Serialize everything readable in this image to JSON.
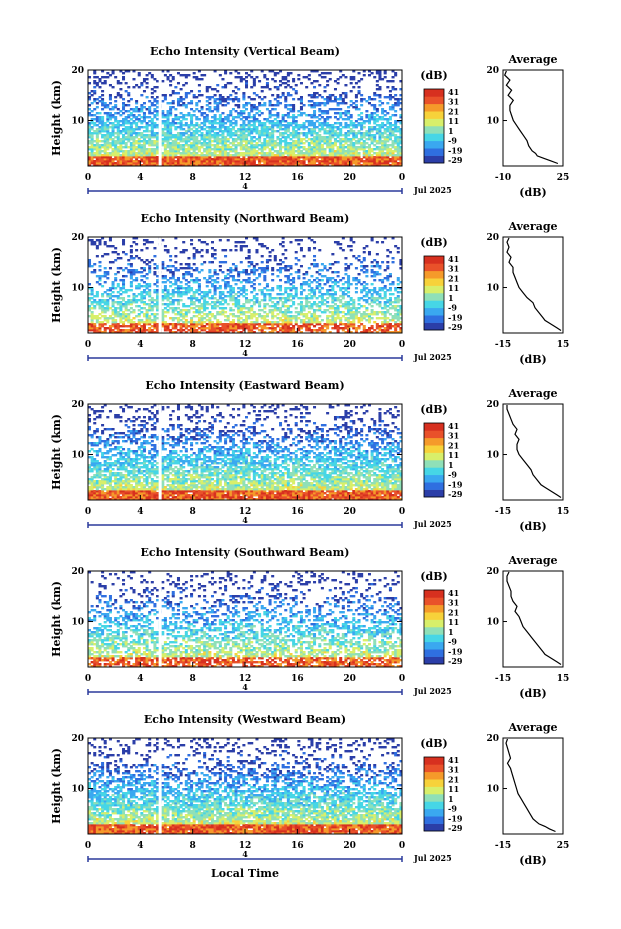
{
  "chart_data": [
    {
      "type": "heatmap",
      "title": "Echo Intensity (Vertical Beam)",
      "ylabel": "Height (km)",
      "x_ticks": [
        "0",
        "4",
        "8",
        "12",
        "16",
        "20",
        "0"
      ],
      "y_ticks": [
        "10",
        "20"
      ],
      "xlim": [
        0,
        24
      ],
      "ylim": [
        1,
        20
      ],
      "date_label": "Jul 2025",
      "day_marker": "4",
      "colorbar": {
        "unit": "(dB)",
        "ticks": [
          "41",
          "31",
          "21",
          "11",
          "1",
          "-9",
          "-19",
          "-29"
        ]
      },
      "profile": {
        "title": "Average",
        "xlabel": "(dB)",
        "x_ticks": [
          "-10",
          "25"
        ],
        "y_ticks": [
          "10",
          "20"
        ],
        "xlim": [
          -10,
          25
        ],
        "heights": [
          1.5,
          2.0,
          2.5,
          3.0,
          3.5,
          4.0,
          5.0,
          6.0,
          7.0,
          8.0,
          9.0,
          10.0,
          11.0,
          12.0,
          13.0,
          14.0,
          15.0,
          16.0,
          17.0,
          18.0,
          19.0,
          19.8
        ],
        "values": [
          22,
          18,
          14,
          10,
          9,
          7,
          5,
          4,
          2,
          0,
          -2,
          -4,
          -5,
          -6,
          -6,
          -4,
          -7,
          -5,
          -8,
          -6,
          -9,
          -8
        ]
      }
    },
    {
      "type": "heatmap",
      "title": "Echo Intensity (Northward Beam)",
      "ylabel": "Height (km)",
      "x_ticks": [
        "0",
        "4",
        "8",
        "12",
        "16",
        "20",
        "0"
      ],
      "y_ticks": [
        "10",
        "20"
      ],
      "xlim": [
        0,
        24
      ],
      "ylim": [
        1,
        20
      ],
      "date_label": "Jul 2025",
      "day_marker": "4",
      "colorbar": {
        "unit": "(dB)",
        "ticks": [
          "41",
          "31",
          "21",
          "11",
          "1",
          "-9",
          "-19",
          "-29"
        ]
      },
      "profile": {
        "title": "Average",
        "xlabel": "(dB)",
        "x_ticks": [
          "-15",
          "15"
        ],
        "y_ticks": [
          "10",
          "20"
        ],
        "xlim": [
          -15,
          15
        ],
        "heights": [
          1.5,
          2.0,
          2.5,
          3.0,
          3.5,
          4.0,
          5.0,
          6.0,
          7.0,
          8.0,
          9.0,
          10.0,
          11.0,
          12.0,
          13.0,
          14.0,
          15.0,
          16.0,
          17.0,
          18.0,
          19.0,
          19.8
        ],
        "values": [
          14,
          12,
          10,
          8,
          6,
          5,
          3,
          1,
          0,
          -3,
          -5,
          -7,
          -8,
          -9,
          -10,
          -10,
          -12,
          -11,
          -13,
          -12,
          -13,
          -12
        ]
      }
    },
    {
      "type": "heatmap",
      "title": "Echo Intensity (Eastward Beam)",
      "ylabel": "Height (km)",
      "x_ticks": [
        "0",
        "4",
        "8",
        "12",
        "16",
        "20",
        "0"
      ],
      "y_ticks": [
        "10",
        "20"
      ],
      "xlim": [
        0,
        24
      ],
      "ylim": [
        1,
        20
      ],
      "date_label": "Jul 2025",
      "day_marker": "4",
      "colorbar": {
        "unit": "(dB)",
        "ticks": [
          "41",
          "31",
          "21",
          "11",
          "1",
          "-9",
          "-19",
          "-29"
        ]
      },
      "profile": {
        "title": "Average",
        "xlabel": "(dB)",
        "x_ticks": [
          "-15",
          "15"
        ],
        "y_ticks": [
          "10",
          "20"
        ],
        "xlim": [
          -15,
          15
        ],
        "heights": [
          1.5,
          2.0,
          2.5,
          3.0,
          3.5,
          4.0,
          5.0,
          6.0,
          7.0,
          8.0,
          9.0,
          10.0,
          11.0,
          12.0,
          13.0,
          14.0,
          15.0,
          16.0,
          17.0,
          18.0,
          19.0,
          19.8
        ],
        "values": [
          14,
          12,
          10,
          8,
          6,
          4,
          2,
          0,
          -1,
          -3,
          -5,
          -7,
          -8,
          -8,
          -7,
          -9,
          -8,
          -10,
          -11,
          -12,
          -13,
          -13
        ]
      }
    },
    {
      "type": "heatmap",
      "title": "Echo Intensity (Southward Beam)",
      "ylabel": "Height (km)",
      "x_ticks": [
        "0",
        "4",
        "8",
        "12",
        "16",
        "20",
        "0"
      ],
      "y_ticks": [
        "10",
        "20"
      ],
      "xlim": [
        0,
        24
      ],
      "ylim": [
        1,
        20
      ],
      "date_label": "Jul 2025",
      "day_marker": "4",
      "colorbar": {
        "unit": "(dB)",
        "ticks": [
          "41",
          "31",
          "21",
          "11",
          "1",
          "-9",
          "-19",
          "-29"
        ]
      },
      "profile": {
        "title": "Average",
        "xlabel": "(dB)",
        "x_ticks": [
          "-15",
          "15"
        ],
        "y_ticks": [
          "10",
          "20"
        ],
        "xlim": [
          -15,
          15
        ],
        "heights": [
          1.5,
          2.0,
          2.5,
          3.0,
          3.5,
          4.0,
          5.0,
          6.0,
          7.0,
          8.0,
          9.0,
          10.0,
          11.0,
          12.0,
          13.0,
          14.0,
          15.0,
          16.0,
          17.0,
          18.0,
          19.0,
          19.8
        ],
        "values": [
          14,
          12,
          10,
          8,
          6,
          5,
          3,
          1,
          -1,
          -3,
          -5,
          -6,
          -7,
          -9,
          -8,
          -10,
          -11,
          -11,
          -12,
          -13,
          -13,
          -12
        ]
      }
    },
    {
      "type": "heatmap",
      "title": "Echo Intensity (Westward Beam)",
      "ylabel": "Height (km)",
      "xlabel": "Local Time",
      "x_ticks": [
        "0",
        "4",
        "8",
        "12",
        "16",
        "20",
        "0"
      ],
      "y_ticks": [
        "10",
        "20"
      ],
      "xlim": [
        0,
        24
      ],
      "ylim": [
        1,
        20
      ],
      "date_label": "Jul 2025",
      "day_marker": "4",
      "colorbar": {
        "unit": "(dB)",
        "ticks": [
          "41",
          "31",
          "21",
          "11",
          "1",
          "-9",
          "-19",
          "-29"
        ]
      },
      "profile": {
        "title": "Average",
        "xlabel": "(dB)",
        "x_ticks": [
          "-15",
          "25"
        ],
        "y_ticks": [
          "10",
          "20"
        ],
        "xlim": [
          -15,
          25
        ],
        "heights": [
          1.5,
          2.0,
          2.5,
          3.0,
          3.5,
          4.0,
          5.0,
          6.0,
          7.0,
          8.0,
          9.0,
          10.0,
          11.0,
          12.0,
          13.0,
          14.0,
          15.0,
          16.0,
          17.0,
          18.0,
          19.0,
          19.8
        ],
        "values": [
          20,
          16,
          13,
          9,
          7,
          5,
          3,
          1,
          -1,
          -3,
          -5,
          -6,
          -7,
          -8,
          -9,
          -10,
          -12,
          -10,
          -11,
          -12,
          -13,
          -12
        ]
      }
    }
  ],
  "colors": {
    "scale": [
      "#2b3ea8",
      "#2f6fe0",
      "#3aa8f0",
      "#46d6e6",
      "#8fe0b8",
      "#d8ef6a",
      "#f7d23a",
      "#f59a2a",
      "#e9512a",
      "#d7301f"
    ],
    "axis": "#000000",
    "date_bar": "#2b3a9c"
  }
}
